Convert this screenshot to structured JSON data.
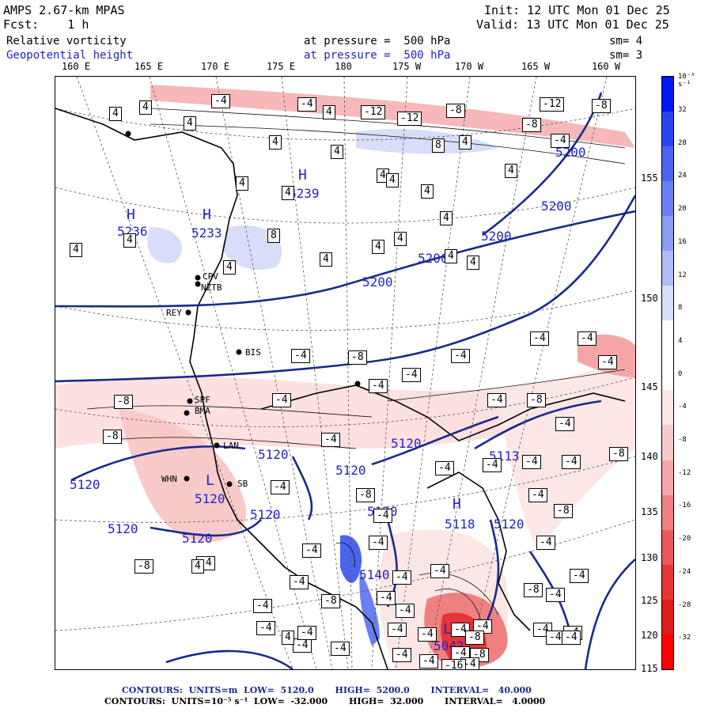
{
  "header": {
    "model": "AMPS 2.67-km MPAS",
    "forecast": "Fcst:    1 h",
    "init": "Init: 12 UTC Mon 01 Dec 25",
    "valid": "Valid: 13 UTC Mon 01 Dec 25",
    "field1_name": "Relative vorticity",
    "field1_level": "at pressure =  500 hPa",
    "field1_sm": "sm= 4",
    "field2_name": "Geopotential height",
    "field2_level": "at pressure =  500 hPa",
    "field2_sm": "sm= 3"
  },
  "axes": {
    "longitudes": [
      "160 E",
      "165 E",
      "170 E",
      "175 E",
      "180",
      "175 W",
      "170 W",
      "165 W",
      "160 W"
    ],
    "latitudes": [
      "155",
      "150",
      "145",
      "140",
      "135",
      "130",
      "125",
      "120",
      "115"
    ]
  },
  "colorbar": {
    "unit": "10⁻⁵ s⁻¹",
    "labels": [
      "32",
      "28",
      "24",
      "20",
      "16",
      "12",
      "8",
      "4",
      "0",
      "-4",
      "-8",
      "-12",
      "-16",
      "-20",
      "-24",
      "-28",
      "-32"
    ],
    "colors": [
      "#0018f0",
      "#2b44f0",
      "#4a64f0",
      "#6a80f2",
      "#8a9cf4",
      "#b0bcf8",
      "#d8def9",
      "#ffffff",
      "#ffffff",
      "#fde6e6",
      "#f9caca",
      "#f4a6a6",
      "#ef8080",
      "#ea5a5a",
      "#e43636",
      "#e01a1a",
      "#ff0000"
    ]
  },
  "stations": [
    {
      "id": "CPV",
      "label": "CPV"
    },
    {
      "id": "NZTB",
      "label": "NZTB"
    },
    {
      "id": "REY",
      "label": "REY"
    },
    {
      "id": "BIS",
      "label": "BIS"
    },
    {
      "id": "SPF",
      "label": "SPF"
    },
    {
      "id": "BMA",
      "label": "BMA"
    },
    {
      "id": "LAN",
      "label": "LAN"
    },
    {
      "id": "WHN",
      "label": "WHN"
    },
    {
      "id": "SB",
      "label": "SB"
    }
  ],
  "height_labels": [
    "5200",
    "5200",
    "5200",
    "5200",
    "5200",
    "5120",
    "5120",
    "5120",
    "5120",
    "5120",
    "5120",
    "5120",
    "5120",
    "5120",
    "5113",
    "5118",
    "5140",
    "5120",
    "5042"
  ],
  "pressure_centers": [
    "H",
    "5239",
    "H",
    "5236",
    "H",
    "5233",
    "H",
    "L",
    "L"
  ],
  "vort_boxes": [
    "-4",
    "4",
    "4",
    "-4",
    "4",
    "-12",
    "-12",
    "-8",
    "-12",
    "-8",
    "-8",
    "-4",
    "4",
    "4",
    "4",
    "4",
    "8",
    "4",
    "4",
    "4",
    "4",
    "4",
    "4",
    "8",
    "4",
    "4",
    "4",
    "4",
    "4",
    "4",
    "4",
    "4",
    "4",
    "-4",
    "-4",
    "-4",
    "-4",
    "-8",
    "-4",
    "-8",
    "-4",
    "-4",
    "-8",
    "-8",
    "-4",
    "-4",
    "-8",
    "-4",
    "-4",
    "-4",
    "-4",
    "-4",
    "-8",
    "-4",
    "-4",
    "-4",
    "-4",
    "-4",
    "-4",
    "-4",
    "-4",
    "-4",
    "-8",
    "-4",
    "-8",
    "-4",
    "-4",
    "-4",
    "-4",
    "-8",
    "-4",
    "-4",
    "-4",
    "-8",
    "-4",
    "-4",
    "-4",
    "-4",
    "-4",
    "-4",
    "-8",
    "-4",
    "4",
    "-4",
    "-4",
    "-4",
    "-4",
    "-4",
    "-4",
    "-4",
    "-16",
    "-8",
    "4",
    "-4",
    "-4",
    "4"
  ],
  "footer": {
    "line1": "CONTOURS:  UNITS=m  LOW=  5120.0       HIGH=  5200.0       INTERVAL=   40.000",
    "line2": "CONTOURS:  UNITS=10⁻⁵ s⁻¹  LOW=  -32.000       HIGH=  32.000       INTERVAL=   4.0000"
  }
}
